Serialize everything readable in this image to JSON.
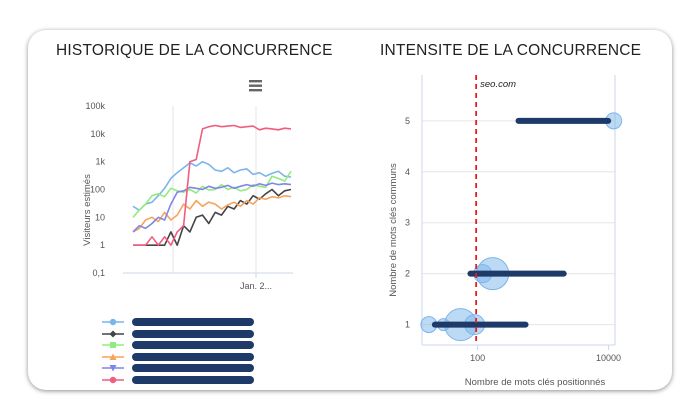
{
  "left_panel": {
    "title": "HISTORIQUE DE LA CONCURRENCE",
    "menu_icon": "hamburger-menu-icon"
  },
  "right_panel": {
    "title": "INTENSITE DE LA CONCURRENCE"
  },
  "legend": [
    {
      "color": "#7cb5ec",
      "marker": "circle"
    },
    {
      "color": "#434348",
      "marker": "diamond"
    },
    {
      "color": "#90ed7d",
      "marker": "square"
    },
    {
      "color": "#f7a35c",
      "marker": "triangle"
    },
    {
      "color": "#8085e9",
      "marker": "triangle-down"
    },
    {
      "color": "#f15c80",
      "marker": "circle"
    }
  ],
  "chart_data": [
    {
      "type": "line",
      "ylabel": "Visiteurs estimés",
      "y_scale": "log",
      "y_ticks": [
        "0,1",
        "1",
        "10",
        "100",
        "1k",
        "10k",
        "100k"
      ],
      "x_ticks": [
        "Jan. 2..."
      ],
      "grid": "vertical",
      "series": [
        {
          "color": "#7cb5ec",
          "values": [
            25,
            18,
            30,
            35,
            60,
            110,
            250,
            400,
            600,
            900,
            700,
            1000,
            800,
            500,
            450,
            600,
            400,
            500,
            550,
            350,
            400,
            300,
            380,
            450,
            300,
            280
          ]
        },
        {
          "color": "#434348",
          "values": [
            1,
            1,
            1,
            1,
            1,
            1,
            3,
            1,
            5,
            3,
            10,
            12,
            6,
            15,
            12,
            25,
            20,
            40,
            30,
            60,
            45,
            70,
            100,
            60,
            90,
            100
          ]
        },
        {
          "color": "#90ed7d",
          "values": [
            10,
            18,
            30,
            60,
            70,
            55,
            110,
            90,
            80,
            100,
            75,
            130,
            95,
            100,
            150,
            100,
            120,
            90,
            100,
            150,
            130,
            120,
            300,
            250,
            200,
            450
          ]
        },
        {
          "color": "#f7a35c",
          "values": [
            3,
            4,
            8,
            10,
            7,
            15,
            8,
            12,
            30,
            20,
            40,
            25,
            35,
            30,
            20,
            28,
            35,
            25,
            40,
            30,
            50,
            45,
            55,
            50,
            60,
            55
          ]
        },
        {
          "color": "#8085e9",
          "values": [
            3,
            5,
            4,
            6,
            10,
            8,
            30,
            80,
            90,
            120,
            110,
            100,
            130,
            110,
            120,
            140,
            110,
            130,
            150,
            130,
            160,
            140,
            170,
            150,
            160,
            150
          ]
        },
        {
          "color": "#f15c80",
          "values": [
            1,
            1,
            1,
            2,
            1,
            2,
            1,
            3,
            5,
            1000,
            1200,
            15000,
            18000,
            20000,
            18000,
            19000,
            20000,
            17000,
            18000,
            19000,
            14000,
            16000,
            15000,
            14000,
            16000,
            15000
          ]
        }
      ]
    },
    {
      "type": "scatter",
      "ylabel": "Nombre de mots clés communs",
      "xlabel": "Nombre de mots clés positionnés",
      "x_scale": "log",
      "x_ticks": [
        "100",
        "10000"
      ],
      "y_ticks": [
        "1",
        "2",
        "3",
        "4",
        "5"
      ],
      "ylim": [
        0.6,
        5.9
      ],
      "grid": "horizontal",
      "reference_line": {
        "label": "seo.com",
        "x": 95,
        "color": "#e02020"
      },
      "bubbles": [
        {
          "x": 18,
          "y": 1,
          "r": 8
        },
        {
          "x": 30,
          "y": 1,
          "r": 6
        },
        {
          "x": 55,
          "y": 1,
          "r": 16
        },
        {
          "x": 90,
          "y": 1,
          "r": 10
        },
        {
          "x": 120,
          "y": 2,
          "r": 9
        },
        {
          "x": 170,
          "y": 2,
          "r": 16
        },
        {
          "x": 12000,
          "y": 5,
          "r": 8
        }
      ],
      "ranges": [
        {
          "y": 1,
          "x_from": 20,
          "x_to": 600
        },
        {
          "y": 2,
          "x_from": 70,
          "x_to": 2300
        },
        {
          "y": 5,
          "x_from": 380,
          "x_to": 11000
        }
      ]
    }
  ]
}
